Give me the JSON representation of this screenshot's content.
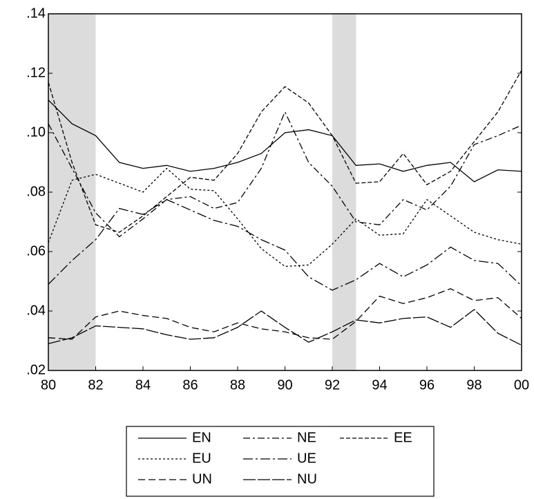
{
  "chart_data": {
    "type": "line",
    "x": [
      80,
      81,
      82,
      83,
      84,
      85,
      86,
      87,
      88,
      89,
      90,
      91,
      92,
      93,
      94,
      95,
      96,
      97,
      98,
      99,
      100
    ],
    "xlim": [
      80,
      100
    ],
    "xticks": [
      80,
      82,
      84,
      86,
      88,
      90,
      92,
      94,
      96,
      98,
      {
        "value": 100,
        "label": "00"
      }
    ],
    "ylim": [
      0.02,
      0.14
    ],
    "yticks": [
      {
        "value": 0.02,
        "label": ".02"
      },
      {
        "value": 0.04,
        "label": ".04"
      },
      {
        "value": 0.06,
        "label": ".06"
      },
      {
        "value": 0.08,
        "label": ".08"
      },
      {
        "value": 0.1,
        "label": ".10"
      },
      {
        "value": 0.12,
        "label": ".12"
      },
      {
        "value": 0.14,
        "label": ".14"
      }
    ],
    "shaded": [
      [
        80,
        82
      ],
      [
        92,
        93
      ]
    ],
    "shade_color": "#dcdcdc",
    "series": [
      {
        "name": "EN",
        "color": "#000000",
        "dash": "none",
        "values": [
          0.111,
          0.103,
          0.099,
          0.09,
          0.088,
          0.089,
          0.087,
          0.088,
          0.09,
          0.093,
          0.1,
          0.101,
          0.099,
          0.089,
          0.0895,
          0.087,
          0.089,
          0.09,
          0.0835,
          0.0875,
          0.087
        ]
      },
      {
        "name": "NE",
        "color": "#000000",
        "dash": "10,4,3,4",
        "values": [
          0.103,
          0.088,
          0.073,
          0.065,
          0.071,
          0.0775,
          0.0785,
          0.0745,
          0.0765,
          0.088,
          0.107,
          0.09,
          0.082,
          0.07,
          0.069,
          0.0775,
          0.074,
          0.082,
          0.096,
          0.099,
          0.1025
        ]
      },
      {
        "name": "EE",
        "color": "#000000",
        "dash": "6,3",
        "values": [
          0.117,
          0.09,
          0.069,
          0.0665,
          0.072,
          0.0785,
          0.085,
          0.084,
          0.093,
          0.107,
          0.1155,
          0.11,
          0.099,
          0.083,
          0.0835,
          0.093,
          0.0825,
          0.087,
          0.097,
          0.107,
          0.121
        ]
      },
      {
        "name": "EU",
        "color": "#000000",
        "dash": "3,3",
        "values": [
          0.063,
          0.084,
          0.086,
          0.083,
          0.08,
          0.088,
          0.081,
          0.0805,
          0.071,
          0.061,
          0.055,
          0.0555,
          0.0625,
          0.071,
          0.0655,
          0.066,
          0.0775,
          0.072,
          0.0665,
          0.064,
          0.0625
        ]
      },
      {
        "name": "UE",
        "color": "#000000",
        "dash": "14,4,3,4",
        "values": [
          0.049,
          0.057,
          0.064,
          0.0745,
          0.0725,
          0.0775,
          0.074,
          0.0705,
          0.0685,
          0.064,
          0.0605,
          0.0515,
          0.047,
          0.0505,
          0.056,
          0.0515,
          0.0555,
          0.0615,
          0.057,
          0.056,
          0.0485
        ]
      },
      {
        "name": "UN",
        "color": "#000000",
        "dash": "10,5",
        "values": [
          0.031,
          0.0305,
          0.038,
          0.04,
          0.0385,
          0.0375,
          0.0345,
          0.033,
          0.036,
          0.034,
          0.033,
          0.031,
          0.0305,
          0.0365,
          0.045,
          0.0425,
          0.0445,
          0.0475,
          0.0435,
          0.0445,
          0.0375
        ]
      },
      {
        "name": "NU",
        "color": "#000000",
        "dash": "18,3",
        "values": [
          0.029,
          0.031,
          0.035,
          0.0345,
          0.034,
          0.032,
          0.0305,
          0.031,
          0.0345,
          0.04,
          0.0345,
          0.0295,
          0.033,
          0.037,
          0.036,
          0.0375,
          0.038,
          0.0345,
          0.0405,
          0.0325,
          0.0285
        ]
      }
    ]
  }
}
